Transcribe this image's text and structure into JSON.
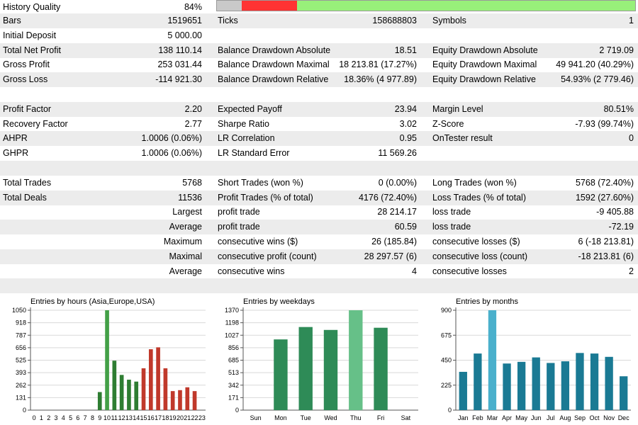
{
  "history_quality": {
    "label": "History Quality",
    "value": "84%",
    "quality_fraction": 0.84
  },
  "rows": [
    {
      "shade": true,
      "c1": [
        "Bars",
        "1519651"
      ],
      "c2": [
        "Ticks",
        "158688803"
      ],
      "c3": [
        "Symbols",
        "1"
      ]
    },
    {
      "shade": false,
      "c1": [
        "Initial Deposit",
        "5 000.00"
      ],
      "c2": [
        "",
        ""
      ],
      "c3": [
        "",
        ""
      ]
    },
    {
      "shade": true,
      "c1": [
        "Total Net Profit",
        "138 110.14"
      ],
      "c2": [
        "Balance Drawdown Absolute",
        "18.51"
      ],
      "c3": [
        "Equity Drawdown Absolute",
        "2 719.09"
      ]
    },
    {
      "shade": false,
      "c1": [
        "Gross Profit",
        "253 031.44"
      ],
      "c2": [
        "Balance Drawdown Maximal",
        "18 213.81 (17.27%)"
      ],
      "c3": [
        "Equity Drawdown Maximal",
        "49 941.20 (40.29%)"
      ]
    },
    {
      "shade": true,
      "c1": [
        "Gross Loss",
        "-114 921.30"
      ],
      "c2": [
        "Balance Drawdown Relative",
        "18.36% (4 977.89)"
      ],
      "c3": [
        "Equity Drawdown Relative",
        "54.93% (2 779.46)"
      ]
    },
    {
      "shade": false,
      "c1": [
        "",
        ""
      ],
      "c2": [
        "",
        ""
      ],
      "c3": [
        "",
        ""
      ]
    },
    {
      "shade": true,
      "c1": [
        "Profit Factor",
        "2.20"
      ],
      "c2": [
        "Expected Payoff",
        "23.94"
      ],
      "c3": [
        "Margin Level",
        "80.51%"
      ]
    },
    {
      "shade": false,
      "c1": [
        "Recovery Factor",
        "2.77"
      ],
      "c2": [
        "Sharpe Ratio",
        "3.02"
      ],
      "c3": [
        "Z-Score",
        "-7.93 (99.74%)"
      ]
    },
    {
      "shade": true,
      "c1": [
        "AHPR",
        "1.0006 (0.06%)"
      ],
      "c2": [
        "LR Correlation",
        "0.95"
      ],
      "c3": [
        "OnTester result",
        "0"
      ]
    },
    {
      "shade": false,
      "c1": [
        "GHPR",
        "1.0006 (0.06%)"
      ],
      "c2": [
        "LR Standard Error",
        "11 569.26"
      ],
      "c3": [
        "",
        ""
      ]
    },
    {
      "shade": true,
      "c1": [
        "",
        ""
      ],
      "c2": [
        "",
        ""
      ],
      "c3": [
        "",
        ""
      ]
    },
    {
      "shade": false,
      "c1": [
        "Total Trades",
        "5768"
      ],
      "c2": [
        "Short Trades (won %)",
        "0 (0.00%)"
      ],
      "c3": [
        "Long Trades (won %)",
        "5768 (72.40%)"
      ]
    },
    {
      "shade": true,
      "c1": [
        "Total Deals",
        "11536"
      ],
      "c2": [
        "Profit Trades (% of total)",
        "4176 (72.40%)"
      ],
      "c3": [
        "Loss Trades (% of total)",
        "1592 (27.60%)"
      ]
    },
    {
      "shade": false,
      "right": "Largest",
      "c2": [
        "profit trade",
        "28 214.17"
      ],
      "c3": [
        "loss trade",
        "-9 405.88"
      ]
    },
    {
      "shade": true,
      "right": "Average",
      "c2": [
        "profit trade",
        "60.59"
      ],
      "c3": [
        "loss trade",
        "-72.19"
      ]
    },
    {
      "shade": false,
      "right": "Maximum",
      "c2": [
        "consecutive wins ($)",
        "26 (185.84)"
      ],
      "c3": [
        "consecutive losses ($)",
        "6 (-18 213.81)"
      ]
    },
    {
      "shade": true,
      "right": "Maximal",
      "c2": [
        "consecutive profit (count)",
        "28 297.57 (6)"
      ],
      "c3": [
        "consecutive loss (count)",
        "-18 213.81 (6)"
      ]
    },
    {
      "shade": false,
      "right": "Average",
      "c2": [
        "consecutive wins",
        "4"
      ],
      "c3": [
        "consecutive losses",
        "2"
      ]
    },
    {
      "shade": true,
      "c1": [
        "",
        ""
      ],
      "c2": [
        "",
        ""
      ],
      "c3": [
        "",
        ""
      ]
    }
  ],
  "chart_data": [
    {
      "type": "bar",
      "title": "Entries by hours (Asia,Europe,USA)",
      "categories": [
        "0",
        "1",
        "2",
        "3",
        "4",
        "5",
        "6",
        "7",
        "8",
        "9",
        "10",
        "11",
        "12",
        "13",
        "14",
        "15",
        "16",
        "17",
        "18",
        "19",
        "20",
        "21",
        "22",
        "23"
      ],
      "values": [
        0,
        0,
        0,
        0,
        0,
        0,
        0,
        0,
        0,
        190,
        1050,
        520,
        370,
        320,
        300,
        440,
        640,
        660,
        440,
        200,
        210,
        240,
        200,
        0
      ],
      "colors": [
        "#2e7d32",
        "#2e7d32",
        "#2e7d32",
        "#2e7d32",
        "#2e7d32",
        "#2e7d32",
        "#2e7d32",
        "#2e7d32",
        "#2e7d32",
        "#2e7d32",
        "#43a047",
        "#2e7d32",
        "#2e7d32",
        "#2e7d32",
        "#2e7d32",
        "#c0392b",
        "#c0392b",
        "#c0392b",
        "#c0392b",
        "#c0392b",
        "#c0392b",
        "#c0392b",
        "#c0392b",
        "#c0392b"
      ],
      "yticks": [
        "0",
        "131",
        "262",
        "393",
        "525",
        "656",
        "787",
        "918",
        "1050"
      ],
      "ylim": [
        0,
        1050
      ]
    },
    {
      "type": "bar",
      "title": "Entries by weekdays",
      "categories": [
        "Sun",
        "Mon",
        "Tue",
        "Wed",
        "Thu",
        "Fri",
        "Sat"
      ],
      "values": [
        0,
        970,
        1140,
        1100,
        1370,
        1130,
        0
      ],
      "colors": [
        "#2e8b57",
        "#2e8b57",
        "#2e8b57",
        "#2e8b57",
        "#66c088",
        "#2e8b57",
        "#2e8b57"
      ],
      "yticks": [
        "0",
        "171",
        "342",
        "513",
        "685",
        "856",
        "1027",
        "1198",
        "1370"
      ],
      "ylim": [
        0,
        1370
      ]
    },
    {
      "type": "bar",
      "title": "Entries by months",
      "categories": [
        "Jan",
        "Feb",
        "Mar",
        "Apr",
        "May",
        "Jun",
        "Jul",
        "Aug",
        "Sep",
        "Oct",
        "Nov",
        "Dec"
      ],
      "values": [
        345,
        510,
        900,
        420,
        435,
        475,
        425,
        440,
        515,
        510,
        480,
        305
      ],
      "colors": [
        "#1a7a94",
        "#1a7a94",
        "#4ab0cc",
        "#1a7a94",
        "#1a7a94",
        "#1a7a94",
        "#1a7a94",
        "#1a7a94",
        "#1a7a94",
        "#1a7a94",
        "#1a7a94",
        "#1a7a94"
      ],
      "yticks": [
        "0",
        "225",
        "450",
        "675",
        "900"
      ],
      "ylim": [
        0,
        900
      ]
    }
  ]
}
